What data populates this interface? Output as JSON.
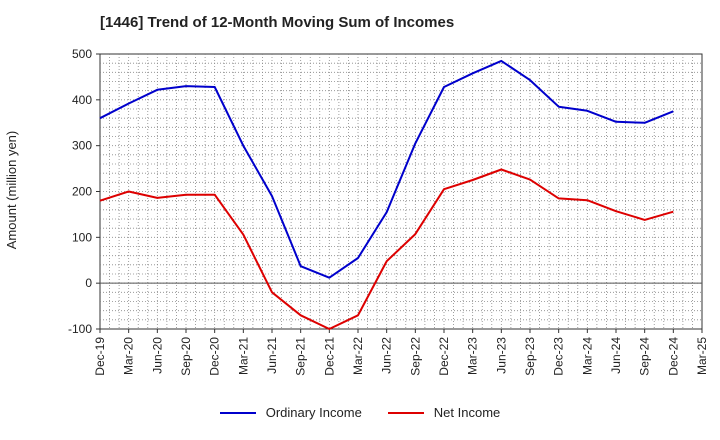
{
  "chart_data": {
    "type": "line",
    "title": "[1446]  Trend of 12-Month Moving Sum of Incomes",
    "ylabel": "Amount (million yen)",
    "xlabel": "",
    "ylim": [
      -100,
      500
    ],
    "yticks": [
      -100,
      0,
      100,
      200,
      300,
      400,
      500
    ],
    "categories": [
      "Dec-19",
      "Mar-20",
      "Jun-20",
      "Sep-20",
      "Dec-20",
      "Mar-21",
      "Jun-21",
      "Sep-21",
      "Dec-21",
      "Mar-22",
      "Jun-22",
      "Sep-22",
      "Dec-22",
      "Mar-23",
      "Jun-23",
      "Sep-23",
      "Dec-23",
      "Mar-24",
      "Jun-24",
      "Sep-24",
      "Dec-24",
      "Mar-25"
    ],
    "series": [
      {
        "name": "Ordinary Income",
        "color": "#0000cc",
        "values": [
          360,
          392,
          422,
          430,
          428,
          300,
          190,
          37,
          12,
          55,
          155,
          305,
          428,
          458,
          485,
          443,
          385,
          376,
          352,
          350,
          375,
          null
        ]
      },
      {
        "name": "Net Income",
        "color": "#dd0000",
        "values": [
          180,
          200,
          186,
          193,
          193,
          106,
          -20,
          -70,
          -100,
          -70,
          48,
          107,
          205,
          225,
          248,
          226,
          185,
          181,
          157,
          138,
          156,
          null
        ]
      }
    ],
    "grid": true,
    "legend": "bottom"
  }
}
